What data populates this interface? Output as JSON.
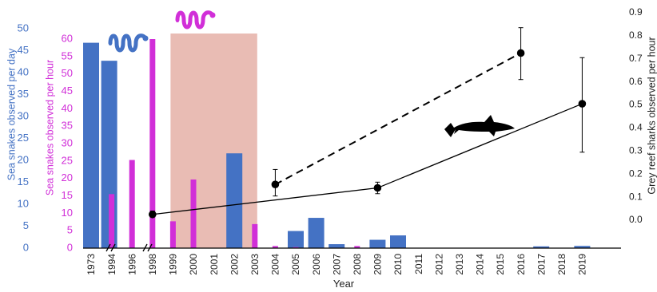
{
  "chart_data": {
    "type": "bar",
    "xlabel": "Year",
    "categories": [
      "1973",
      "1994",
      "1996",
      "1998",
      "1999",
      "2000",
      "2001",
      "2002",
      "2003",
      "2004",
      "2005",
      "2006",
      "2007",
      "2008",
      "2009",
      "2010",
      "2011",
      "2012",
      "2013",
      "2014",
      "2015",
      "2016",
      "2017",
      "2018",
      "2019"
    ],
    "axes": {
      "left_outer": {
        "label": "Sea snakes observed per day",
        "ylim": [
          0,
          50
        ],
        "ticks": [
          0,
          5,
          10,
          15,
          20,
          25,
          30,
          35,
          40,
          45,
          50
        ],
        "color": "#4472C4"
      },
      "left_inner": {
        "label": "Sea snakes observed per hour",
        "ylim": [
          0,
          60
        ],
        "ticks": [
          0,
          5,
          10,
          15,
          20,
          25,
          30,
          35,
          40,
          45,
          50,
          55,
          60
        ],
        "color": "#D12FD8"
      },
      "right": {
        "label": "Grey reef sharks observed per hour",
        "ylim": [
          -0.1,
          0.9
        ],
        "ticks": [
          0.0,
          0.1,
          0.2,
          0.3,
          0.4,
          0.5,
          0.6,
          0.7,
          0.8,
          0.9
        ],
        "color": "#222222"
      }
    },
    "series": [
      {
        "type": "bar",
        "axis": "left_outer",
        "color": "#4472C4",
        "points": [
          {
            "x": "1973",
            "y": 46.8
          },
          {
            "x": "1994",
            "y": 42.7
          },
          {
            "x": "2002",
            "y": 21.6
          },
          {
            "x": "2005",
            "y": 3.9
          },
          {
            "x": "2006",
            "y": 6.9
          },
          {
            "x": "2007",
            "y": 0.9
          },
          {
            "x": "2009",
            "y": 1.9
          },
          {
            "x": "2010",
            "y": 2.9
          },
          {
            "x": "2017",
            "y": 0.4
          },
          {
            "x": "2019",
            "y": 0.5
          }
        ]
      },
      {
        "type": "bar",
        "axis": "left_inner",
        "color": "#D12FD8",
        "points": [
          {
            "x": "1994",
            "y": 15.5
          },
          {
            "x": "1996",
            "y": 25.3
          },
          {
            "x": "1998",
            "y": 60
          },
          {
            "x": "1999",
            "y": 7.7
          },
          {
            "x": "2000",
            "y": 19.7
          },
          {
            "x": "2003",
            "y": 6.9
          },
          {
            "x": "2004",
            "y": 0.6
          },
          {
            "x": "2005",
            "y": 0.3
          },
          {
            "x": "2008",
            "y": 0.6
          }
        ]
      },
      {
        "type": "line",
        "style": "solid",
        "axis": "right",
        "color": "#000000",
        "points": [
          {
            "x": "1998",
            "y": 0.025,
            "err_low": 0.01,
            "err_high": 0.015
          },
          {
            "x": "2009",
            "y": 0.14,
            "err_low": 0.025,
            "err_high": 0.025
          },
          {
            "x": "2019",
            "y": 0.505,
            "err_low": 0.21,
            "err_high": 0.2
          }
        ]
      },
      {
        "type": "line",
        "style": "dashed",
        "axis": "right",
        "color": "#000000",
        "points": [
          {
            "x": "2004",
            "y": 0.155,
            "err_low": 0.05,
            "err_high": 0.065
          },
          {
            "x": "2016",
            "y": 0.725,
            "err_low": 0.115,
            "err_high": 0.11
          }
        ]
      }
    ],
    "shaded_region": {
      "from": "1999",
      "to": "2003",
      "color": "#E8B8B0"
    },
    "axis_breaks": [
      "1973-1994",
      "1994-1996"
    ],
    "icons": [
      "sea-snake-icon-blue",
      "sea-snake-icon-magenta",
      "shark-icon"
    ]
  }
}
